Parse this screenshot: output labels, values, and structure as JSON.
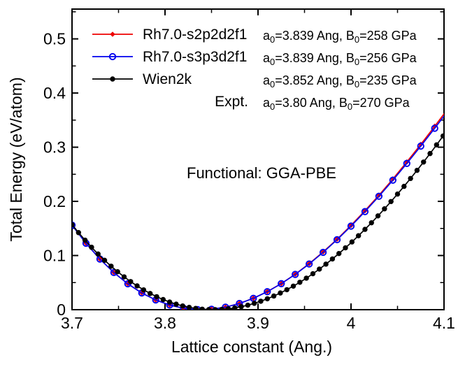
{
  "colors": {
    "red": "#ee0000",
    "blue": "#0000ee",
    "black": "#000000",
    "background": "#ffffff"
  },
  "legend": {
    "entries": [
      {
        "label": "Rh7.0-s2p2d2f1",
        "marker": "diamond",
        "color": "#ee0000",
        "annotation_segments": [
          "a",
          "0",
          "=3.839 Ang, B",
          "0",
          "=258 GPa"
        ]
      },
      {
        "label": "Rh7.0-s3p3d2f1",
        "marker": "open-circle",
        "color": "#0000ee",
        "annotation_segments": [
          "a",
          "0",
          "=3.839 Ang, B",
          "0",
          "=256 GPa"
        ]
      },
      {
        "label": "Wien2k",
        "marker": "filled-circle",
        "color": "#000000",
        "annotation_segments": [
          "a",
          "0",
          "=3.852 Ang, B",
          "0",
          "=235 GPa"
        ]
      },
      {
        "label": "Expt.",
        "marker": "none",
        "color": "#000000",
        "annotation_segments": [
          "a",
          "0",
          "=3.80 Ang,  B",
          "0",
          "=270 GPa"
        ]
      }
    ]
  },
  "chart_data": {
    "type": "line",
    "annotation": "Functional: GGA-PBE",
    "xlabel": "Lattice constant (Ang.)",
    "ylabel": "Total Energy (eV/atom)",
    "xlim": [
      3.7,
      4.1
    ],
    "ylim": [
      0,
      0.555
    ],
    "grid": false,
    "legend_position": "top-left-inside",
    "x_axis": {
      "major_ticks": [
        3.7,
        3.8,
        3.9,
        4.0,
        4.1
      ],
      "major_labels": [
        "3.7",
        "3.8",
        "3.9",
        "4",
        "4.1"
      ],
      "minor_ticks": [
        3.75,
        3.85,
        3.95,
        4.05
      ]
    },
    "y_axis": {
      "major_ticks": [
        0,
        0.1,
        0.2,
        0.3,
        0.4,
        0.5
      ],
      "major_labels": [
        "0",
        "0.1",
        "0.2",
        "0.3",
        "0.4",
        "0.5"
      ],
      "minor_ticks": [
        0.05,
        0.15,
        0.25,
        0.35,
        0.45,
        0.55
      ]
    },
    "results": [
      {
        "series": "Rh7.0-s2p2d2f1",
        "a0_ang": 3.839,
        "B0_gpa": 258
      },
      {
        "series": "Rh7.0-s3p3d2f1",
        "a0_ang": 3.839,
        "B0_gpa": 256
      },
      {
        "series": "Wien2k",
        "a0_ang": 3.852,
        "B0_gpa": 235
      },
      {
        "series": "Expt.",
        "a0_ang": 3.8,
        "B0_gpa": 270
      }
    ],
    "series": [
      {
        "name": "Rh7.0-s2p2d2f1",
        "color": "#ee0000",
        "marker": "diamond",
        "x": [
          3.7,
          3.715,
          3.73,
          3.745,
          3.76,
          3.775,
          3.79,
          3.805,
          3.82,
          3.835,
          3.85,
          3.865,
          3.88,
          3.895,
          3.91,
          3.925,
          3.94,
          3.955,
          3.97,
          3.985,
          4.0,
          4.015,
          4.03,
          4.045,
          4.06,
          4.075,
          4.09,
          4.105
        ],
        "y": [
          0.1562,
          0.1227,
          0.0936,
          0.0687,
          0.0479,
          0.031,
          0.0179,
          0.0085,
          0.0026,
          0.0001,
          0.0009,
          0.0047,
          0.0115,
          0.0211,
          0.0334,
          0.0482,
          0.0655,
          0.085,
          0.1066,
          0.1301,
          0.1556,
          0.1827,
          0.2113,
          0.2414,
          0.2727,
          0.3052,
          0.3387,
          0.373
        ]
      },
      {
        "name": "Rh7.0-s3p3d2f1",
        "color": "#0000ee",
        "marker": "open-circle",
        "x": [
          3.7,
          3.715,
          3.73,
          3.745,
          3.76,
          3.775,
          3.79,
          3.805,
          3.82,
          3.835,
          3.85,
          3.865,
          3.88,
          3.895,
          3.91,
          3.925,
          3.94,
          3.955,
          3.97,
          3.985,
          4.0,
          4.015,
          4.03,
          4.045,
          4.06,
          4.075,
          4.09,
          4.105
        ],
        "y": [
          0.1561,
          0.1226,
          0.0935,
          0.0686,
          0.0478,
          0.0309,
          0.0179,
          0.0085,
          0.0026,
          0.0001,
          0.0008,
          0.0047,
          0.0114,
          0.021,
          0.0332,
          0.048,
          0.0651,
          0.0844,
          0.1058,
          0.1292,
          0.1543,
          0.1811,
          0.2094,
          0.2391,
          0.27,
          0.302,
          0.3349,
          0.3686
        ]
      },
      {
        "name": "Wien2k",
        "color": "#000000",
        "marker": "filled-circle",
        "x": [
          3.7,
          3.707,
          3.714,
          3.721,
          3.728,
          3.735,
          3.742,
          3.749,
          3.756,
          3.763,
          3.77,
          3.777,
          3.784,
          3.791,
          3.798,
          3.805,
          3.812,
          3.819,
          3.826,
          3.833,
          3.84,
          3.847,
          3.854,
          3.861,
          3.868,
          3.875,
          3.882,
          3.889,
          3.896,
          3.903,
          3.91,
          3.917,
          3.924,
          3.931,
          3.938,
          3.945,
          3.952,
          3.959,
          3.966,
          3.973,
          3.98,
          3.987,
          3.994,
          4.001,
          4.008,
          4.015,
          4.022,
          4.029,
          4.036,
          4.043,
          4.05,
          4.057,
          4.064,
          4.071,
          4.078,
          4.085,
          4.092,
          4.099
        ],
        "y": [
          0.157,
          0.1423,
          0.1284,
          0.1152,
          0.1028,
          0.0912,
          0.0803,
          0.0701,
          0.0606,
          0.0519,
          0.0439,
          0.0366,
          0.0299,
          0.024,
          0.0187,
          0.0141,
          0.0102,
          0.0069,
          0.0043,
          0.0023,
          0.0009,
          0.0002,
          0.0,
          0.0005,
          0.0016,
          0.0032,
          0.0055,
          0.0083,
          0.0117,
          0.0156,
          0.0201,
          0.0252,
          0.0308,
          0.0369,
          0.0435,
          0.0506,
          0.0582,
          0.0664,
          0.075,
          0.0841,
          0.0937,
          0.1037,
          0.1142,
          0.1251,
          0.1365,
          0.1483,
          0.1605,
          0.1732,
          0.1862,
          0.1997,
          0.2135,
          0.2277,
          0.2423,
          0.2573,
          0.2726,
          0.2883,
          0.3043,
          0.3207
        ]
      }
    ]
  }
}
